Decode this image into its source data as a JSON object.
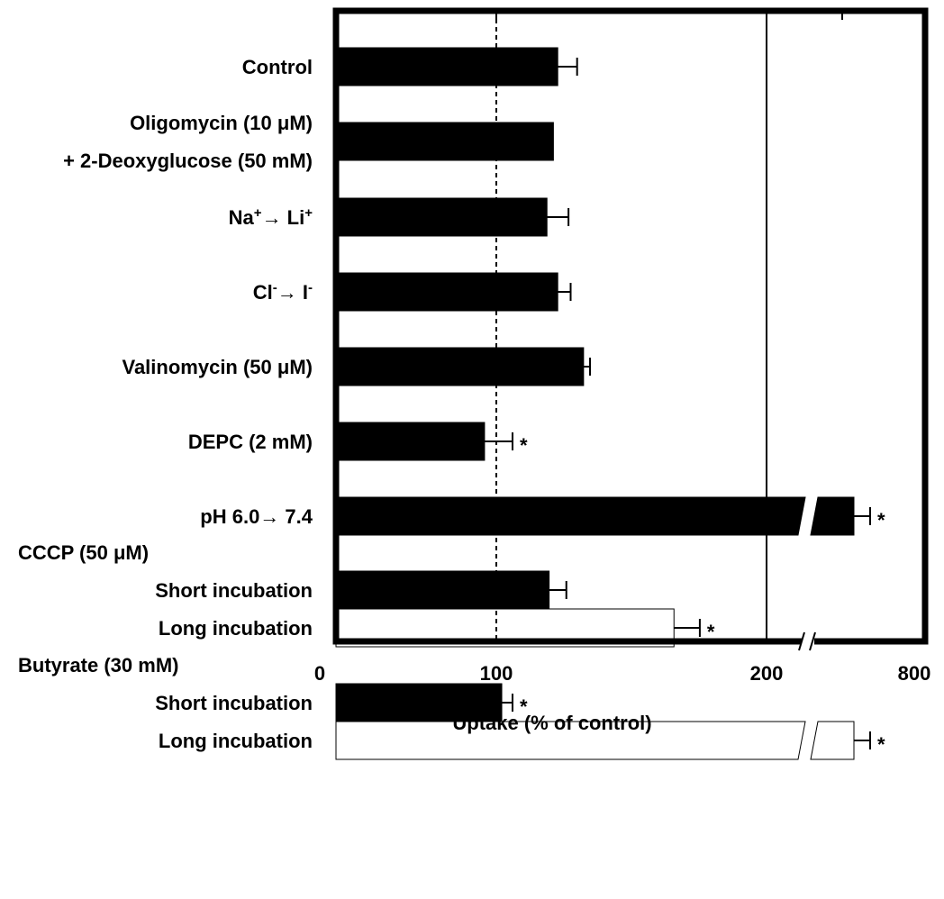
{
  "chart_data": {
    "type": "bar",
    "orientation": "horizontal",
    "xlabel": "Uptake (% of control)",
    "x_ticks": [
      "0",
      "100",
      "200",
      "800"
    ],
    "x_axis_break": "between 200 and 800",
    "reference_line": 100,
    "grid": false,
    "categories": [
      {
        "lines": [
          [
            {
              "t": "Control"
            }
          ]
        ]
      },
      {
        "lines": [
          [
            {
              "t": "Oligomycin (10 μM)"
            }
          ],
          [
            {
              "t": "+ 2-Deoxyglucose (50 mM)"
            }
          ]
        ]
      },
      {
        "lines": [
          [
            {
              "t": "Na"
            },
            {
              "t": "+",
              "sup": true
            },
            {
              "t": "→ Li"
            },
            {
              "t": "+",
              "sup": true
            }
          ]
        ]
      },
      {
        "lines": [
          [
            {
              "t": "Cl"
            },
            {
              "t": "-",
              "sup": true
            },
            {
              "t": "→ I"
            },
            {
              "t": "-",
              "sup": true
            }
          ]
        ]
      },
      {
        "lines": [
          [
            {
              "t": "Valinomycin (50 μM)"
            }
          ]
        ]
      },
      {
        "lines": [
          [
            {
              "t": "DEPC (2 mM)"
            }
          ]
        ]
      },
      {
        "lines": [
          [
            {
              "t": "pH 6.0→ 7.4"
            }
          ]
        ]
      },
      {
        "group": "CCCP (50 μM)",
        "lines": [
          [
            {
              "t": "Short incubation"
            }
          ]
        ]
      },
      {
        "lines": [
          [
            {
              "t": "Long incubation"
            }
          ]
        ]
      },
      {
        "group": "Butyrate (30 mM)",
        "lines": [
          [
            {
              "t": "Short incubation"
            }
          ]
        ]
      },
      {
        "lines": [
          [
            {
              "t": "Long incubation"
            }
          ]
        ]
      }
    ],
    "series": [
      {
        "fills": [
          "black",
          "black",
          "black",
          "black",
          "black",
          "black",
          "black",
          "black",
          "white",
          "black",
          "white"
        ],
        "values": [
          103,
          101,
          98,
          103,
          115,
          69,
          450,
          99,
          157,
          77,
          236
        ],
        "errors": [
          9,
          null,
          10,
          6,
          3,
          13,
          50,
          8,
          12,
          5,
          18
        ],
        "significant": [
          false,
          false,
          false,
          false,
          false,
          true,
          true,
          false,
          true,
          true,
          true
        ]
      }
    ],
    "significance_marker": "*"
  }
}
